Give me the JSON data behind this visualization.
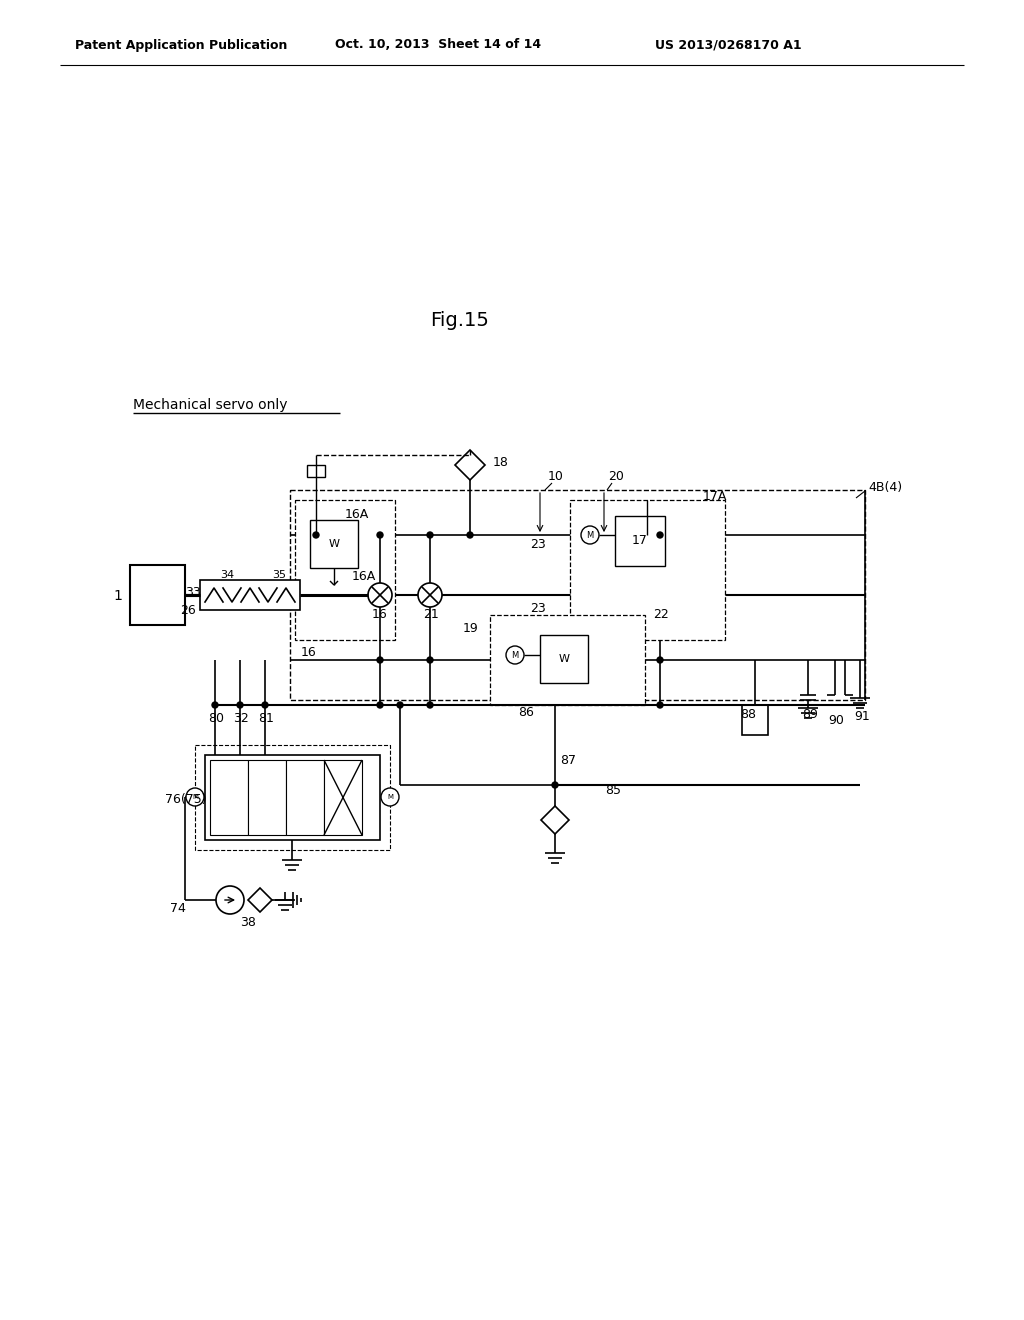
{
  "header_left": "Patent Application Publication",
  "header_center": "Oct. 10, 2013  Sheet 14 of 14",
  "header_right": "US 2013/0268170 A1",
  "fig_label": "Fig.15",
  "subtitle": "Mechanical servo only",
  "bg_color": "#ffffff"
}
